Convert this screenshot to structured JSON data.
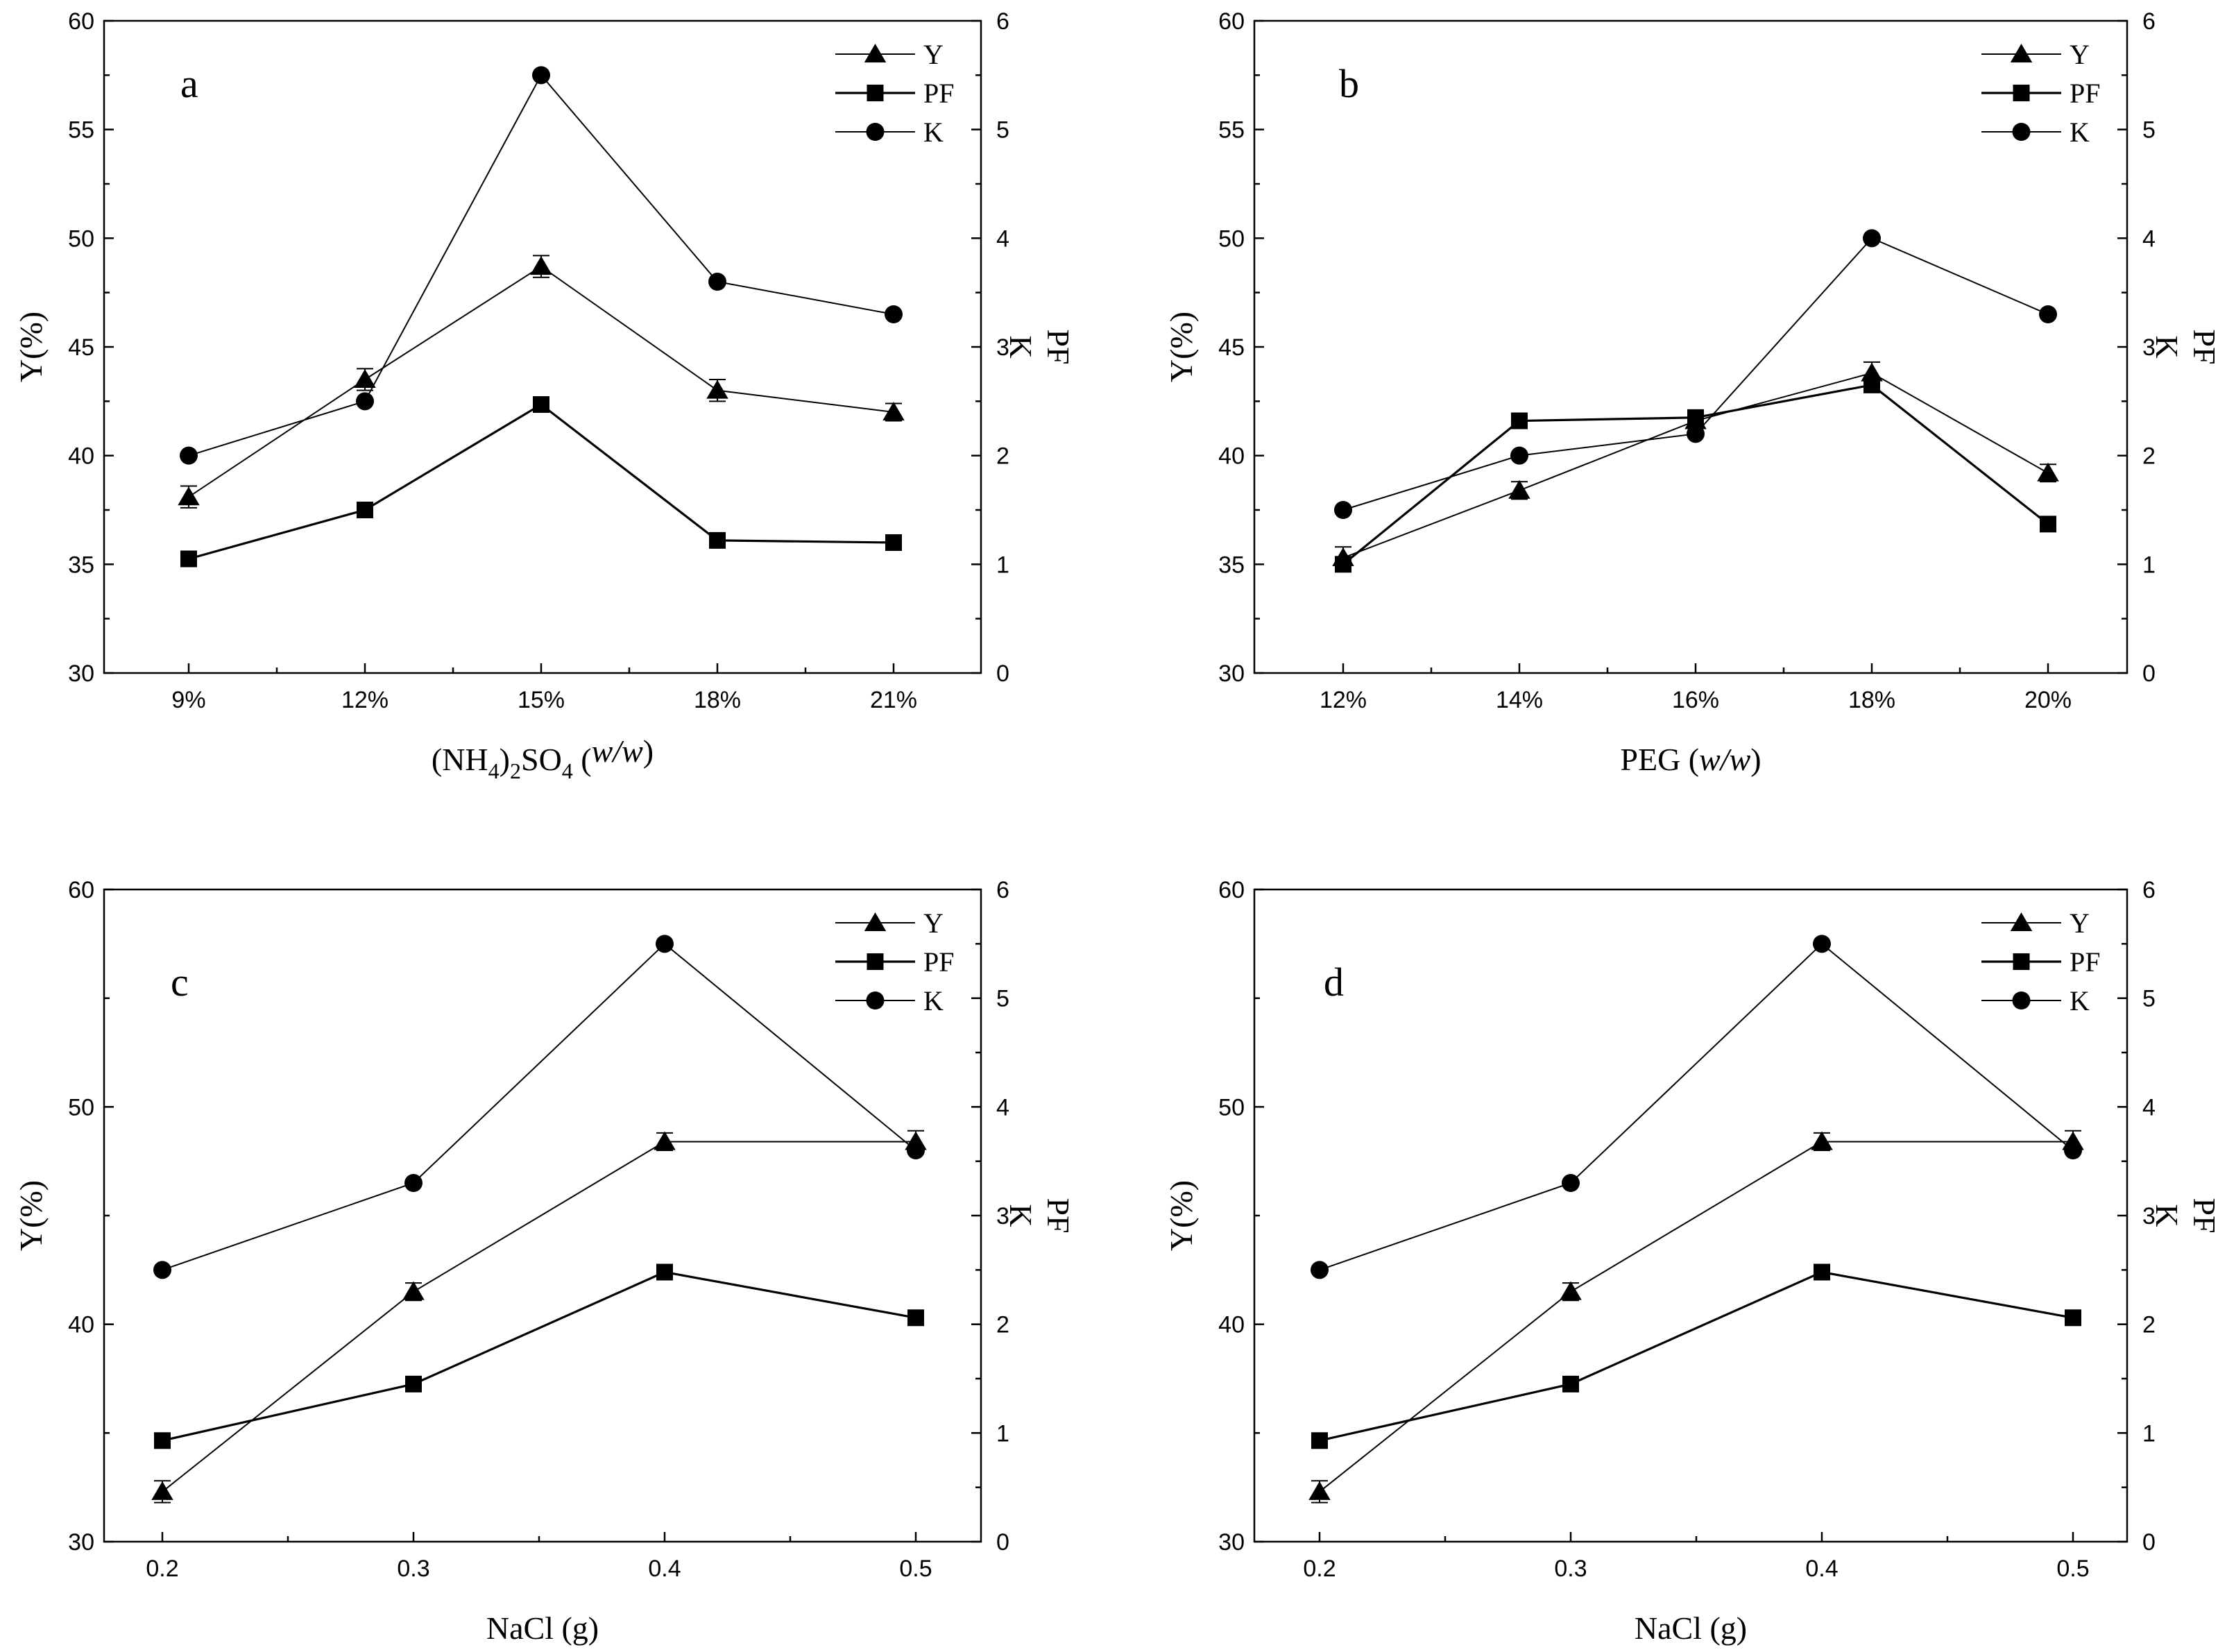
{
  "figure": {
    "panels": [
      "a",
      "b",
      "c",
      "d"
    ]
  },
  "chart_data": [
    {
      "panel": "a",
      "type": "line",
      "title": "",
      "panel_letter": "a",
      "xlabel": "(NH4)2SO4 (w/w)",
      "xlabel_parts": {
        "pre": "(NH",
        "sub1": "4",
        "mid1": ")",
        "sub2": "2",
        "mid2": "SO",
        "sub3": "4",
        "post": " (",
        "italic": "w/w",
        "end": ")"
      },
      "ylabel_left": "Y(%)",
      "ylabel_right_1": "K",
      "ylabel_right_2": "PF",
      "categories": [
        "9%",
        "12%",
        "15%",
        "18%",
        "21%"
      ],
      "y_left_lim": [
        30,
        60
      ],
      "y_left_ticks": [
        "30",
        "35",
        "40",
        "45",
        "50",
        "55",
        "60"
      ],
      "y_left_tick_values": [
        30,
        35,
        40,
        45,
        50,
        55,
        60
      ],
      "y_right_lim": [
        0,
        6
      ],
      "y_right_ticks": [
        "0",
        "1",
        "2",
        "3",
        "4",
        "5",
        "6"
      ],
      "y_right_tick_values": [
        0,
        1,
        2,
        3,
        4,
        5,
        6
      ],
      "legend": [
        "Y",
        "PF",
        "K"
      ],
      "legend_position": "top-right",
      "series": [
        {
          "name": "Y",
          "axis": "left",
          "marker": "triangle",
          "values": [
            38.1,
            43.5,
            48.7,
            43.0,
            42.0
          ],
          "errors": [
            0.5,
            0.5,
            0.5,
            0.5,
            0.4
          ]
        },
        {
          "name": "PF",
          "axis": "right",
          "marker": "square",
          "values": [
            1.05,
            1.5,
            2.47,
            1.22,
            1.2
          ]
        },
        {
          "name": "K",
          "axis": "right",
          "marker": "circle",
          "values": [
            2.0,
            2.5,
            5.5,
            3.6,
            3.3
          ]
        }
      ]
    },
    {
      "panel": "b",
      "type": "line",
      "title": "",
      "panel_letter": "b",
      "xlabel": "PEG (w/w)",
      "xlabel_parts": {
        "pre": "PEG (",
        "italic": "w/w",
        "end": ")"
      },
      "ylabel_left": "Y(%)",
      "ylabel_right_1": "K",
      "ylabel_right_2": "PF",
      "categories": [
        "12%",
        "14%",
        "16%",
        "18%",
        "20%"
      ],
      "y_left_lim": [
        30,
        60
      ],
      "y_left_ticks": [
        "30",
        "35",
        "40",
        "45",
        "50",
        "55",
        "60"
      ],
      "y_left_tick_values": [
        30,
        35,
        40,
        45,
        50,
        55,
        60
      ],
      "y_right_lim": [
        0,
        6
      ],
      "y_right_ticks": [
        "0",
        "1",
        "2",
        "3",
        "4",
        "5",
        "6"
      ],
      "y_right_tick_values": [
        0,
        1,
        2,
        3,
        4,
        5,
        6
      ],
      "legend": [
        "Y",
        "PF",
        "K"
      ],
      "legend_position": "top-right",
      "series": [
        {
          "name": "Y",
          "axis": "left",
          "marker": "triangle",
          "values": [
            35.3,
            38.4,
            41.6,
            43.8,
            39.2
          ],
          "errors": [
            0.5,
            0.4,
            0.3,
            0.5,
            0.4
          ]
        },
        {
          "name": "PF",
          "axis": "right",
          "marker": "square",
          "values": [
            1.0,
            2.32,
            2.35,
            2.65,
            1.37
          ]
        },
        {
          "name": "K",
          "axis": "right",
          "marker": "circle",
          "values": [
            1.5,
            2.0,
            2.2,
            4.0,
            3.3
          ]
        }
      ]
    },
    {
      "panel": "c",
      "type": "line",
      "title": "",
      "panel_letter": "c",
      "xlabel": "NaCl (g)",
      "ylabel_left": "Y(%)",
      "ylabel_right_1": "K",
      "ylabel_right_2": "PF",
      "categories": [
        "0.2",
        "0.3",
        "0.4",
        "0.5"
      ],
      "y_left_lim": [
        30,
        60
      ],
      "y_left_ticks": [
        "30",
        "40",
        "50",
        "60"
      ],
      "y_left_tick_values": [
        30,
        40,
        50,
        60
      ],
      "y_right_lim": [
        0,
        6
      ],
      "y_right_ticks": [
        "0",
        "1",
        "2",
        "3",
        "4",
        "5",
        "6"
      ],
      "y_right_tick_values": [
        0,
        1,
        2,
        3,
        4,
        5,
        6
      ],
      "legend": [
        "Y",
        "PF",
        "K"
      ],
      "legend_position": "top-right",
      "series": [
        {
          "name": "Y",
          "axis": "left",
          "marker": "triangle",
          "values": [
            32.3,
            41.5,
            48.4,
            48.4
          ],
          "errors": [
            0.5,
            0.4,
            0.4,
            0.5
          ]
        },
        {
          "name": "PF",
          "axis": "right",
          "marker": "square",
          "values": [
            0.93,
            1.45,
            2.48,
            2.06
          ]
        },
        {
          "name": "K",
          "axis": "right",
          "marker": "circle",
          "values": [
            2.5,
            3.3,
            5.5,
            3.6
          ]
        }
      ]
    },
    {
      "panel": "d",
      "type": "line",
      "title": "",
      "panel_letter": "d",
      "xlabel": "NaCl (g)",
      "ylabel_left": "Y(%)",
      "ylabel_right_1": "K",
      "ylabel_right_2": "PF",
      "categories": [
        "0.2",
        "0.3",
        "0.4",
        "0.5"
      ],
      "y_left_lim": [
        30,
        60
      ],
      "y_left_ticks": [
        "30",
        "40",
        "50",
        "60"
      ],
      "y_left_tick_values": [
        30,
        40,
        50,
        60
      ],
      "y_right_lim": [
        0,
        6
      ],
      "y_right_ticks": [
        "0",
        "1",
        "2",
        "3",
        "4",
        "5",
        "6"
      ],
      "y_right_tick_values": [
        0,
        1,
        2,
        3,
        4,
        5,
        6
      ],
      "legend": [
        "Y",
        "PF",
        "K"
      ],
      "legend_position": "top-right",
      "series": [
        {
          "name": "Y",
          "axis": "left",
          "marker": "triangle",
          "values": [
            32.3,
            41.5,
            48.4,
            48.4
          ],
          "errors": [
            0.5,
            0.4,
            0.4,
            0.5
          ]
        },
        {
          "name": "PF",
          "axis": "right",
          "marker": "square",
          "values": [
            0.93,
            1.45,
            2.48,
            2.06
          ]
        },
        {
          "name": "K",
          "axis": "right",
          "marker": "circle",
          "values": [
            2.5,
            3.3,
            5.5,
            3.6
          ]
        }
      ]
    }
  ]
}
